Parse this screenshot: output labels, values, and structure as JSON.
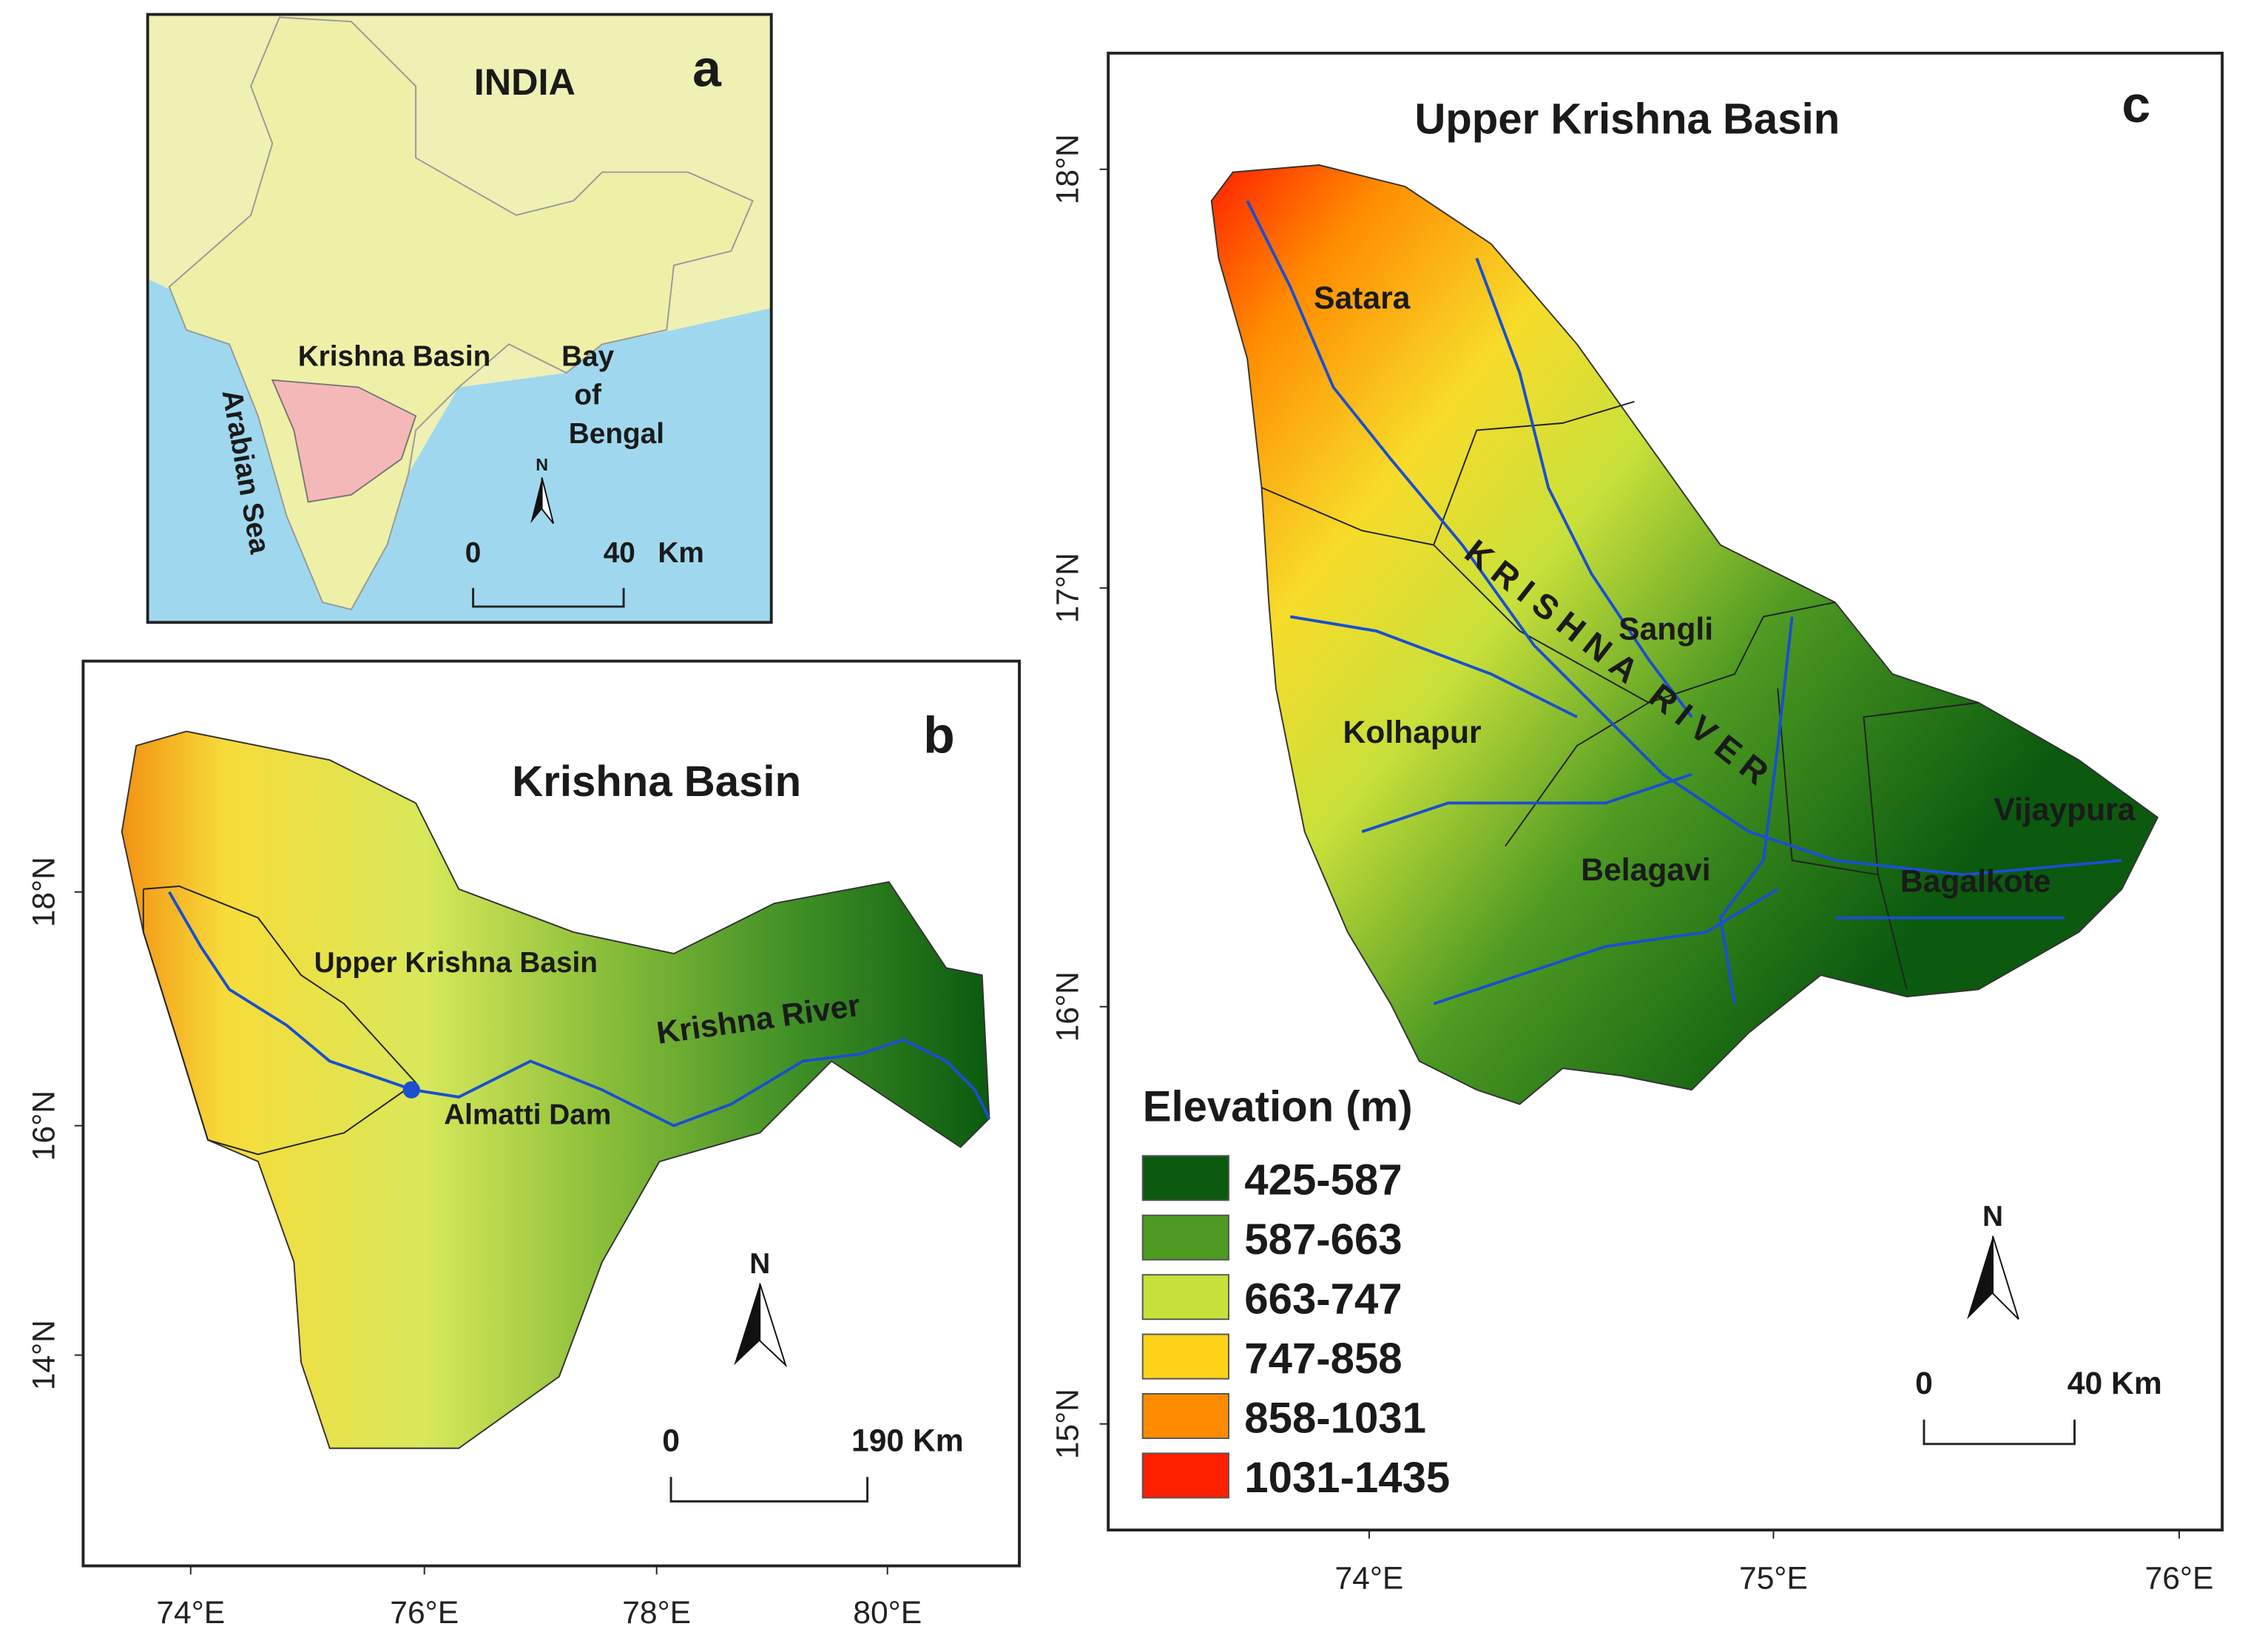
{
  "panel_a": {
    "letter": "a",
    "country": "INDIA",
    "basin": "Krishna Basin",
    "bay": [
      "Bay",
      "of",
      "Bengal"
    ],
    "sea": "Arabian Sea",
    "north": "N",
    "scale_start": "0",
    "scale_end": "40",
    "scale_unit": "Km"
  },
  "panel_b": {
    "letter": "b",
    "title": "Krishna Basin",
    "sub_basin": "Upper Krishna Basin",
    "river": "Krishna River",
    "dam": "Almatti Dam",
    "north": "N",
    "scale_start": "0",
    "scale_end": "190 Km",
    "yticks": [
      "18°N",
      "16°N",
      "14°N"
    ],
    "xticks": [
      "74°E",
      "76°E",
      "78°E",
      "80°E"
    ]
  },
  "panel_c": {
    "letter": "c",
    "title": "Upper Krishna Basin",
    "river": "KRISHNA RIVER",
    "districts": [
      "Satara",
      "Sangli",
      "Kolhapur",
      "Belagavi",
      "Vijaypura",
      "Bagalkote"
    ],
    "north": "N",
    "scale_start": "0",
    "scale_end": "40 Km",
    "yticks": [
      "18°N",
      "17°N",
      "16°N",
      "15°N"
    ],
    "xticks": [
      "74°E",
      "75°E",
      "76°E"
    ],
    "legend": {
      "title": "Elevation (m)",
      "items": [
        {
          "label": "425-587",
          "color": "#0b5a0f"
        },
        {
          "label": "587-663",
          "color": "#4e9a22"
        },
        {
          "label": "663-747",
          "color": "#c8e03a"
        },
        {
          "label": "747-858",
          "color": "#ffd21a"
        },
        {
          "label": "858-1031",
          "color": "#ff8c00"
        },
        {
          "label": "1031-1435",
          "color": "#ff2000"
        }
      ]
    }
  }
}
